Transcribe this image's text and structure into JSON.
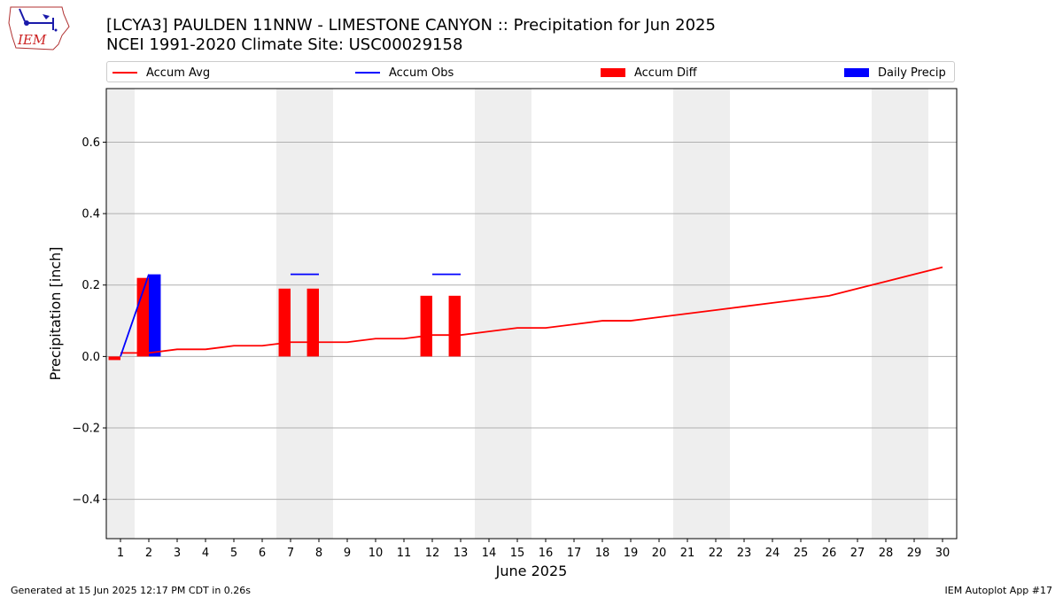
{
  "header": {
    "title_line1": "[LCYA3] PAULDEN 11NNW - LIMESTONE CANYON :: Precipitation for Jun 2025",
    "title_line2": "NCEI 1991-2020 Climate Site: USC00029158",
    "logo_text": "IEM"
  },
  "legend": {
    "accum_avg": "Accum Avg",
    "accum_obs": "Accum Obs",
    "accum_diff": "Accum Diff",
    "daily_precip": "Daily Precip"
  },
  "footer": {
    "generated": "Generated at 15 Jun 2025 12:17 PM CDT in 0.26s",
    "app": "IEM Autoplot App #17"
  },
  "colors": {
    "avg": "#ff0000",
    "obs": "#0000ff",
    "diff": "#ff0000",
    "precip": "#0000ff",
    "weekend_band": "#eeeeee",
    "grid": "#b0b0b0"
  },
  "chart_data": {
    "type": "bar",
    "title": "[LCYA3] PAULDEN 11NNW - LIMESTONE CANYON :: Precipitation for Jun 2025",
    "xlabel": "June 2025",
    "ylabel": "Precipitation [inch]",
    "xlim": [
      0.5,
      30.5
    ],
    "ylim": [
      -0.51,
      0.75
    ],
    "x_ticks": [
      1,
      2,
      3,
      4,
      5,
      6,
      7,
      8,
      9,
      10,
      11,
      12,
      13,
      14,
      15,
      16,
      17,
      18,
      19,
      20,
      21,
      22,
      23,
      24,
      25,
      26,
      27,
      28,
      29,
      30
    ],
    "y_ticks": [
      -0.4,
      -0.2,
      0.0,
      0.2,
      0.4,
      0.6
    ],
    "y_tick_labels": [
      "−0.4",
      "−0.2",
      "0.0",
      "0.2",
      "0.4",
      "0.6"
    ],
    "grid": "horizontal",
    "legend_position": "top",
    "weekend_bands": [
      [
        0.5,
        1.5
      ],
      [
        6.5,
        8.5
      ],
      [
        13.5,
        15.5
      ],
      [
        20.5,
        22.5
      ],
      [
        27.5,
        29.5
      ]
    ],
    "series": [
      {
        "name": "Accum Avg",
        "kind": "line",
        "x": [
          1,
          2,
          3,
          4,
          5,
          6,
          7,
          8,
          9,
          10,
          11,
          12,
          13,
          14,
          15,
          16,
          17,
          18,
          19,
          20,
          21,
          22,
          23,
          24,
          25,
          26,
          27,
          28,
          29,
          30
        ],
        "values": [
          0.01,
          0.01,
          0.02,
          0.02,
          0.03,
          0.03,
          0.04,
          0.04,
          0.04,
          0.05,
          0.05,
          0.06,
          0.06,
          0.07,
          0.08,
          0.08,
          0.09,
          0.1,
          0.1,
          0.11,
          0.12,
          0.13,
          0.14,
          0.15,
          0.16,
          0.17,
          0.19,
          0.21,
          0.23,
          0.25
        ]
      },
      {
        "name": "Accum Obs",
        "kind": "step",
        "x": [
          1,
          2,
          7,
          8,
          12,
          13
        ],
        "values": [
          0.0,
          0.23,
          0.23,
          0.23,
          0.23,
          0.23
        ]
      },
      {
        "name": "Accum Diff",
        "kind": "bar",
        "x": [
          1,
          2,
          7,
          8,
          12,
          13
        ],
        "values": [
          -0.01,
          0.22,
          0.19,
          0.19,
          0.17,
          0.17
        ]
      },
      {
        "name": "Daily Precip",
        "kind": "bar",
        "x": [
          2
        ],
        "values": [
          0.23
        ]
      }
    ]
  }
}
